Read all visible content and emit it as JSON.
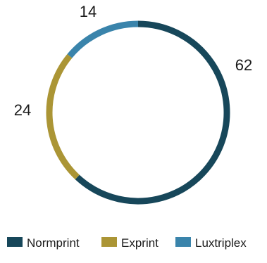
{
  "chart_data": {
    "type": "pie",
    "style": "donut-ring",
    "legend_position": "bottom",
    "slices": [
      {
        "name": "Normprint",
        "value": 62,
        "color": "#17475a"
      },
      {
        "name": "Exprint",
        "value": 24,
        "color": "#ab9535"
      },
      {
        "name": "Luxtriplex",
        "value": 14,
        "color": "#3a84ab"
      }
    ]
  }
}
